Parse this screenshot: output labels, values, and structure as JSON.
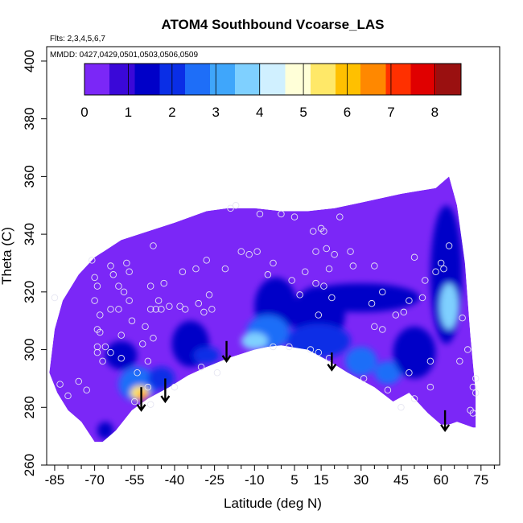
{
  "chart_data": {
    "type": "heatmap",
    "title": "ATOM4 Southbound Vcoarse_LAS",
    "flights_text": "Flts: 2,3,4,5,6,7",
    "dates_text": "MMDD: 0427,0429,0501,0503,0506,0509",
    "xlabel": "Latitude (deg N)",
    "ylabel": "Theta (C)",
    "xlim": [
      -88,
      82
    ],
    "ylim": [
      260,
      405
    ],
    "x_ticks": [
      -85,
      -70,
      -55,
      -40,
      -25,
      -10,
      5,
      15,
      30,
      45,
      60,
      75
    ],
    "x_minor_ticks": [
      -80,
      -75,
      -65,
      -60,
      -50,
      -45,
      -35,
      -30,
      -20,
      -15,
      -5,
      0,
      10,
      20,
      25,
      35,
      40,
      50,
      55,
      65,
      70,
      80
    ],
    "y_ticks": [
      260,
      280,
      300,
      320,
      340,
      360,
      380,
      400
    ],
    "colorbar": {
      "min": 0,
      "max": 8.6,
      "ticks": [
        0,
        1,
        2,
        3,
        4,
        5,
        6,
        7,
        8
      ],
      "colors": [
        "#7b27f7",
        "#3a08d8",
        "#0000c8",
        "#0a2ee6",
        "#1e6ef8",
        "#3fa6fb",
        "#7fd0ff",
        "#d0f0ff",
        "#ffffd8",
        "#ffe868",
        "#ffc000",
        "#ff8800",
        "#ff3000",
        "#e00000",
        "#9a1010"
      ]
    },
    "boundary": {
      "upper": [
        [
          -87,
          292
        ],
        [
          -85,
          307
        ],
        [
          -82,
          317
        ],
        [
          -76,
          326
        ],
        [
          -70,
          332
        ],
        [
          -60,
          338
        ],
        [
          -50,
          341
        ],
        [
          -40,
          344
        ],
        [
          -28,
          348
        ],
        [
          -20,
          349
        ],
        [
          -10,
          349
        ],
        [
          0,
          348
        ],
        [
          10,
          348
        ],
        [
          20,
          349
        ],
        [
          30,
          351
        ],
        [
          45,
          354
        ],
        [
          58,
          356
        ],
        [
          63,
          360
        ],
        [
          66,
          350
        ],
        [
          69,
          330
        ],
        [
          71,
          305
        ],
        [
          73,
          285
        ],
        [
          73,
          273
        ]
      ],
      "lower": [
        [
          72,
          273
        ],
        [
          69,
          274
        ],
        [
          66,
          275
        ],
        [
          63,
          274
        ],
        [
          60,
          274
        ],
        [
          55,
          278
        ],
        [
          48,
          285
        ],
        [
          42,
          282
        ],
        [
          35,
          287
        ],
        [
          25,
          292
        ],
        [
          18,
          296
        ],
        [
          10,
          300
        ],
        [
          0,
          301.5
        ],
        [
          -5,
          301
        ],
        [
          -10,
          300
        ],
        [
          -20,
          297
        ],
        [
          -28,
          294
        ],
        [
          -35,
          291
        ],
        [
          -42,
          287
        ],
        [
          -50,
          283
        ],
        [
          -56,
          279
        ],
        [
          -62,
          272
        ],
        [
          -67,
          268
        ],
        [
          -70,
          268
        ],
        [
          -75,
          275
        ],
        [
          -80,
          279
        ],
        [
          -84,
          285
        ],
        [
          -87,
          292
        ]
      ]
    },
    "hotspots": [
      {
        "x": 62,
        "y": 326,
        "rx": 6,
        "ry": 24,
        "value": 1.6
      },
      {
        "x": 63,
        "y": 315,
        "rx": 3.5,
        "ry": 8,
        "value": 3.8
      },
      {
        "x": 30,
        "y": 318,
        "rx": 22,
        "ry": 5,
        "value": 1.2
      },
      {
        "x": 14,
        "y": 312,
        "rx": 10,
        "ry": 10,
        "value": 1.5
      },
      {
        "x": -2,
        "y": 315,
        "rx": 8,
        "ry": 10,
        "value": 1.4
      },
      {
        "x": -5,
        "y": 306,
        "rx": 8,
        "ry": 6,
        "value": 2.6
      },
      {
        "x": -10,
        "y": 303,
        "rx": 5,
        "ry": 3,
        "value": 3.6
      },
      {
        "x": 14,
        "y": 303,
        "rx": 12,
        "ry": 6,
        "value": 1.8
      },
      {
        "x": 30,
        "y": 296,
        "rx": 6,
        "ry": 5,
        "value": 2.6
      },
      {
        "x": 40,
        "y": 292,
        "rx": 5,
        "ry": 4,
        "value": 2.4
      },
      {
        "x": 50,
        "y": 299,
        "rx": 8,
        "ry": 9,
        "value": 1.7
      },
      {
        "x": -34,
        "y": 302,
        "rx": 7,
        "ry": 8,
        "value": 1.3
      },
      {
        "x": -28,
        "y": 298,
        "rx": 5,
        "ry": 3,
        "value": 2.2
      },
      {
        "x": -60,
        "y": 298,
        "rx": 6,
        "ry": 5,
        "value": 1.2
      },
      {
        "x": -54,
        "y": 288,
        "rx": 7,
        "ry": 6,
        "value": 2.6
      },
      {
        "x": -53,
        "y": 285,
        "rx": 3.5,
        "ry": 2.5,
        "value": 5.4
      },
      {
        "x": -52,
        "y": 284,
        "rx": 1.6,
        "ry": 1.6,
        "value": 6.6
      },
      {
        "x": -45,
        "y": 290,
        "rx": 5,
        "ry": 4,
        "value": 1.8
      },
      {
        "x": -66,
        "y": 272,
        "rx": 3,
        "ry": 3,
        "value": 1.2
      }
    ],
    "arrows": [
      {
        "x": -52.5,
        "y0": 287,
        "y1": 279
      },
      {
        "x": -43.5,
        "y0": 290,
        "y1": 282
      },
      {
        "x": -20.5,
        "y0": 303,
        "y1": 296
      },
      {
        "x": 19,
        "y0": 299,
        "y1": 293
      },
      {
        "x": 61.5,
        "y0": 279,
        "y1": 272
      }
    ],
    "points": [
      [
        -85,
        318
      ],
      [
        -83,
        288
      ],
      [
        -80,
        284
      ],
      [
        -76,
        289
      ],
      [
        -73,
        286
      ],
      [
        -71,
        331
      ],
      [
        -70,
        325
      ],
      [
        -70,
        317
      ],
      [
        -69,
        322
      ],
      [
        -69,
        307
      ],
      [
        -69,
        301
      ],
      [
        -69,
        299
      ],
      [
        -68,
        312
      ],
      [
        -68,
        306
      ],
      [
        -67,
        296
      ],
      [
        -66,
        301
      ],
      [
        -64,
        329
      ],
      [
        -64,
        299
      ],
      [
        -64,
        314
      ],
      [
        -63,
        326
      ],
      [
        -61,
        322
      ],
      [
        -61,
        314
      ],
      [
        -60,
        305
      ],
      [
        -60,
        297
      ],
      [
        -59,
        320
      ],
      [
        -58,
        330
      ],
      [
        -57,
        327
      ],
      [
        -57,
        317
      ],
      [
        -56,
        310
      ],
      [
        -55,
        282
      ],
      [
        -54,
        292
      ],
      [
        -52,
        302
      ],
      [
        -51,
        308
      ],
      [
        -50,
        296
      ],
      [
        -50,
        287
      ],
      [
        -49,
        281
      ],
      [
        -49,
        322
      ],
      [
        -49,
        314
      ],
      [
        -48,
        336
      ],
      [
        -48,
        304
      ],
      [
        -47,
        314
      ],
      [
        -46,
        317
      ],
      [
        -45,
        314
      ],
      [
        -44,
        323
      ],
      [
        -42,
        315
      ],
      [
        -40,
        287
      ],
      [
        -38,
        315
      ],
      [
        -37,
        327
      ],
      [
        -36,
        314
      ],
      [
        -32,
        328
      ],
      [
        -31,
        316
      ],
      [
        -30,
        294
      ],
      [
        -29,
        313
      ],
      [
        -28,
        331
      ],
      [
        -27,
        319
      ],
      [
        -26,
        314
      ],
      [
        -24,
        292
      ],
      [
        -21,
        328
      ],
      [
        -19,
        349
      ],
      [
        -17,
        350
      ],
      [
        -15,
        334
      ],
      [
        -12,
        333
      ],
      [
        -9,
        334
      ],
      [
        -8,
        347
      ],
      [
        -5,
        326
      ],
      [
        -3,
        301
      ],
      [
        -3,
        330
      ],
      [
        0,
        347
      ],
      [
        3,
        301
      ],
      [
        4,
        324
      ],
      [
        5,
        346
      ],
      [
        7,
        319
      ],
      [
        9,
        327
      ],
      [
        11,
        300
      ],
      [
        12,
        341
      ],
      [
        13,
        334
      ],
      [
        13,
        323
      ],
      [
        14,
        299
      ],
      [
        14,
        312
      ],
      [
        15,
        342
      ],
      [
        16,
        322
      ],
      [
        16,
        341
      ],
      [
        17,
        335
      ],
      [
        18,
        297
      ],
      [
        18,
        328
      ],
      [
        19,
        318
      ],
      [
        20,
        333
      ],
      [
        22,
        346
      ],
      [
        26,
        334
      ],
      [
        27,
        329
      ],
      [
        31,
        290
      ],
      [
        34,
        316
      ],
      [
        35,
        329
      ],
      [
        35,
        308
      ],
      [
        38,
        320
      ],
      [
        38,
        307
      ],
      [
        40,
        286
      ],
      [
        43,
        312
      ],
      [
        45,
        280
      ],
      [
        46,
        313
      ],
      [
        48,
        317
      ],
      [
        48,
        292
      ],
      [
        50,
        283
      ],
      [
        50,
        332
      ],
      [
        53,
        318
      ],
      [
        54,
        324
      ],
      [
        56,
        296
      ],
      [
        56,
        287
      ],
      [
        58,
        327
      ],
      [
        60,
        330
      ],
      [
        61,
        328
      ],
      [
        63,
        336
      ],
      [
        67,
        296
      ],
      [
        68,
        311
      ],
      [
        70,
        300
      ],
      [
        72,
        287
      ],
      [
        73,
        285
      ],
      [
        71,
        279
      ],
      [
        72,
        278
      ],
      [
        73,
        290
      ]
    ]
  }
}
